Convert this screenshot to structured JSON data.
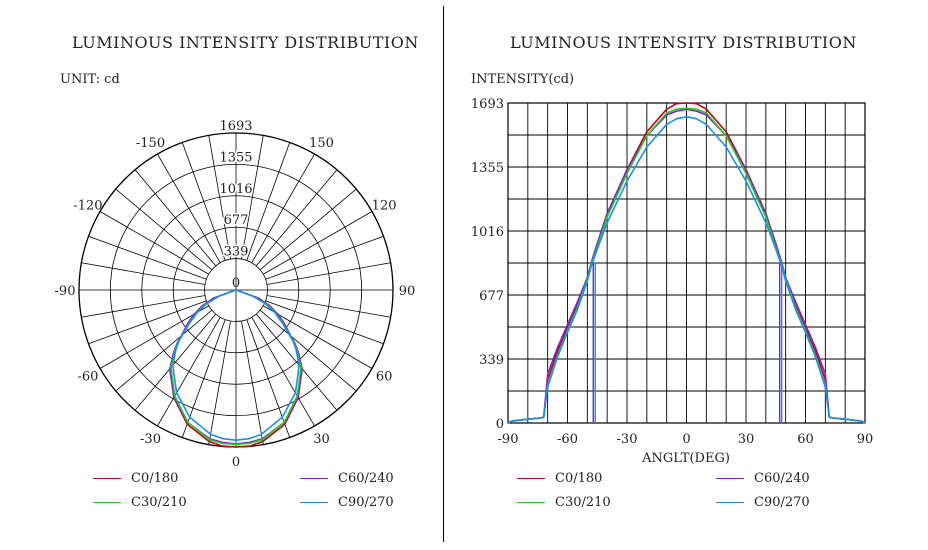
{
  "left": {
    "title": "LUMINOUS INTENSITY DISTRIBUTION",
    "unit": "UNIT: cd",
    "ring_labels": [
      "0",
      "339",
      "677",
      "1016",
      "1355",
      "1693"
    ],
    "angle_labels": [
      "-150",
      "150",
      "-120",
      "120",
      "-90",
      "90",
      "-60",
      "60",
      "-30",
      "30",
      "0"
    ]
  },
  "right": {
    "title": "LUMINOUS INTENSITY DISTRIBUTION",
    "ylabel": "INTENSITY(cd)",
    "xlabel": "ANGLT(DEG)"
  },
  "legend": [
    {
      "label": "C0/180",
      "color": "#c0001c"
    },
    {
      "label": "C60/240",
      "color": "#8a1cc8"
    },
    {
      "label": "C30/210",
      "color": "#22cc22"
    },
    {
      "label": "C90/270",
      "color": "#1e8ee8"
    }
  ],
  "chart_data": [
    {
      "type": "polar",
      "title": "LUMINOUS INTENSITY DISTRIBUTION",
      "unit": "cd",
      "rlim": [
        0,
        1693
      ],
      "r_ticks": [
        0,
        339,
        677,
        1016,
        1355,
        1693
      ],
      "angle_ticks": [
        -150,
        150,
        -120,
        120,
        -90,
        90,
        -60,
        60,
        -30,
        30,
        0
      ],
      "series": [
        {
          "name": "C0/180",
          "color": "#c0001c",
          "x": [
            -90,
            -88,
            -80,
            -75,
            -72,
            -70,
            -65,
            -60,
            -55,
            -50,
            -48,
            -45,
            -40,
            -30,
            -20,
            -10,
            -5,
            0,
            5,
            10,
            20,
            30,
            40,
            45,
            48,
            50,
            55,
            60,
            65,
            70,
            72,
            75,
            80,
            88,
            90
          ],
          "y": [
            0,
            10,
            20,
            25,
            30,
            230,
            380,
            500,
            620,
            760,
            840,
            940,
            1100,
            1340,
            1540,
            1660,
            1690,
            1693,
            1690,
            1660,
            1540,
            1340,
            1100,
            940,
            840,
            760,
            620,
            500,
            380,
            230,
            30,
            25,
            20,
            10,
            0
          ]
        },
        {
          "name": "C60/240",
          "color": "#8a1cc8",
          "x": [
            -90,
            -88,
            -80,
            -75,
            -72,
            -70,
            -65,
            -60,
            -55,
            -50,
            -48,
            -45,
            -40,
            -30,
            -20,
            -10,
            -5,
            0,
            5,
            10,
            20,
            30,
            40,
            45,
            48,
            50,
            55,
            60,
            65,
            70,
            72,
            75,
            80,
            88,
            90
          ],
          "y": [
            0,
            10,
            20,
            25,
            30,
            260,
            400,
            520,
            640,
            770,
            850,
            950,
            1110,
            1340,
            1520,
            1630,
            1650,
            1660,
            1650,
            1630,
            1520,
            1340,
            1110,
            950,
            850,
            770,
            640,
            520,
            400,
            260,
            30,
            25,
            20,
            10,
            0
          ]
        },
        {
          "name": "C30/210",
          "color": "#22cc22",
          "x": [
            -90,
            -88,
            -80,
            -75,
            -72,
            -70,
            -65,
            -60,
            -55,
            -50,
            -48,
            -45,
            -40,
            -30,
            -20,
            -10,
            -5,
            0,
            5,
            10,
            20,
            30,
            40,
            45,
            48,
            50,
            55,
            60,
            65,
            70,
            72,
            75,
            80,
            88,
            90
          ],
          "y": [
            0,
            10,
            20,
            25,
            30,
            200,
            360,
            490,
            610,
            760,
            840,
            930,
            1090,
            1320,
            1520,
            1640,
            1660,
            1665,
            1660,
            1640,
            1520,
            1320,
            1090,
            930,
            840,
            760,
            610,
            490,
            360,
            200,
            30,
            25,
            20,
            10,
            0
          ]
        },
        {
          "name": "C90/270",
          "color": "#1e8ee8",
          "x": [
            -90,
            -88,
            -80,
            -75,
            -72,
            -70,
            -65,
            -60,
            -55,
            -50,
            -48,
            -45,
            -40,
            -30,
            -20,
            -10,
            -5,
            0,
            5,
            10,
            20,
            30,
            40,
            45,
            48,
            50,
            55,
            60,
            65,
            70,
            72,
            75,
            80,
            88,
            90
          ],
          "y": [
            0,
            10,
            20,
            25,
            30,
            190,
            350,
            480,
            600,
            750,
            830,
            920,
            1060,
            1280,
            1460,
            1580,
            1610,
            1620,
            1610,
            1580,
            1460,
            1280,
            1060,
            920,
            830,
            750,
            600,
            480,
            350,
            190,
            30,
            25,
            20,
            10,
            0
          ]
        }
      ]
    },
    {
      "type": "line",
      "title": "LUMINOUS INTENSITY DISTRIBUTION",
      "xlabel": "ANGLT(DEG)",
      "ylabel": "INTENSITY(cd)",
      "xlim": [
        -90,
        90
      ],
      "ylim": [
        0,
        1693
      ],
      "x_ticks": [
        -90,
        -60,
        -30,
        0,
        30,
        60,
        90
      ],
      "y_ticks": [
        0,
        339,
        677,
        1016,
        1355,
        1693
      ],
      "grid": true,
      "series_ref": "same as polar series",
      "series": [
        {
          "name": "C0/180",
          "color": "#c0001c",
          "x": [
            -90,
            -88,
            -80,
            -75,
            -72,
            -70,
            -65,
            -60,
            -55,
            -50,
            -48,
            -45,
            -40,
            -30,
            -20,
            -10,
            -5,
            0,
            5,
            10,
            20,
            30,
            40,
            45,
            48,
            50,
            55,
            60,
            65,
            70,
            72,
            75,
            80,
            88,
            90
          ],
          "y": [
            0,
            10,
            20,
            25,
            30,
            230,
            380,
            500,
            620,
            760,
            840,
            940,
            1100,
            1340,
            1540,
            1660,
            1690,
            1693,
            1690,
            1660,
            1540,
            1340,
            1100,
            940,
            840,
            760,
            620,
            500,
            380,
            230,
            30,
            25,
            20,
            10,
            0
          ]
        },
        {
          "name": "C60/240",
          "color": "#8a1cc8",
          "x": [
            -90,
            -88,
            -80,
            -75,
            -72,
            -70,
            -65,
            -60,
            -55,
            -50,
            -48,
            -45,
            -40,
            -30,
            -20,
            -10,
            -5,
            0,
            5,
            10,
            20,
            30,
            40,
            45,
            48,
            50,
            55,
            60,
            65,
            70,
            72,
            75,
            80,
            88,
            90
          ],
          "y": [
            0,
            10,
            20,
            25,
            30,
            260,
            400,
            520,
            640,
            770,
            850,
            950,
            1110,
            1340,
            1520,
            1630,
            1650,
            1660,
            1650,
            1630,
            1520,
            1340,
            1110,
            950,
            850,
            770,
            640,
            520,
            400,
            260,
            30,
            25,
            20,
            10,
            0
          ]
        },
        {
          "name": "C30/210",
          "color": "#22cc22",
          "x": [
            -90,
            -88,
            -80,
            -75,
            -72,
            -70,
            -65,
            -60,
            -55,
            -50,
            -48,
            -45,
            -40,
            -30,
            -20,
            -10,
            -5,
            0,
            5,
            10,
            20,
            30,
            40,
            45,
            48,
            50,
            55,
            60,
            65,
            70,
            72,
            75,
            80,
            88,
            90
          ],
          "y": [
            0,
            10,
            20,
            25,
            30,
            200,
            360,
            490,
            610,
            760,
            840,
            930,
            1090,
            1320,
            1520,
            1640,
            1660,
            1665,
            1660,
            1640,
            1520,
            1320,
            1090,
            930,
            840,
            760,
            610,
            490,
            360,
            200,
            30,
            25,
            20,
            10,
            0
          ]
        },
        {
          "name": "C90/270",
          "color": "#1e8ee8",
          "x": [
            -90,
            -88,
            -80,
            -75,
            -72,
            -70,
            -65,
            -60,
            -55,
            -50,
            -48,
            -45,
            -40,
            -30,
            -20,
            -10,
            -5,
            0,
            5,
            10,
            20,
            30,
            40,
            45,
            48,
            50,
            55,
            60,
            65,
            70,
            72,
            75,
            80,
            88,
            90
          ],
          "y": [
            0,
            10,
            20,
            25,
            30,
            190,
            350,
            480,
            600,
            750,
            830,
            920,
            1060,
            1280,
            1460,
            1580,
            1610,
            1620,
            1610,
            1580,
            1460,
            1280,
            1060,
            920,
            830,
            750,
            600,
            480,
            350,
            190,
            30,
            25,
            20,
            10,
            0
          ]
        }
      ]
    }
  ]
}
